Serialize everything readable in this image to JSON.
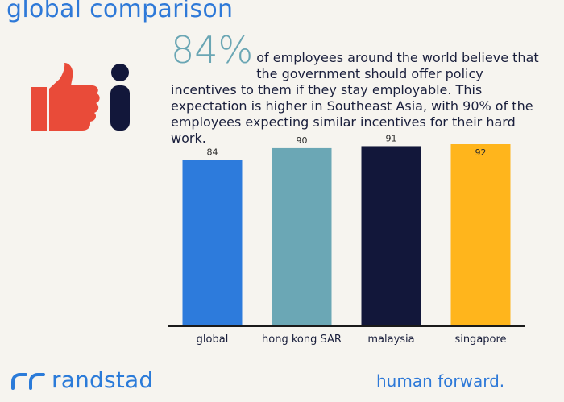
{
  "header": {
    "title": "global comparison"
  },
  "headline": {
    "percent": "84%",
    "text": "of employees around the world believe that the government should offer policy incentives to them if they stay employable. This expectation is higher in Southeast Asia, with 90% of the employees expecting similar incentives for their hard work."
  },
  "icons": [
    {
      "name": "thumbs-up-icon",
      "color": "#e94b39"
    },
    {
      "name": "info-icon",
      "color": "#12173a"
    }
  ],
  "chart_data": {
    "type": "bar",
    "categories": [
      "global",
      "hong kong SAR",
      "malaysia",
      "singapore"
    ],
    "values": [
      84,
      90,
      91,
      92
    ],
    "data_labels": [
      "84",
      "90",
      "91",
      "92"
    ],
    "colors": [
      "#2d7bdc",
      "#6ba7b5",
      "#12173a",
      "#ffb51c"
    ],
    "title": "",
    "xlabel": "",
    "ylabel": "",
    "ylim": [
      0,
      92
    ],
    "grid": false,
    "legend": "none"
  },
  "footer": {
    "brand": "randstad",
    "tagline": "human forward.",
    "brand_color": "#2b7bd9"
  }
}
